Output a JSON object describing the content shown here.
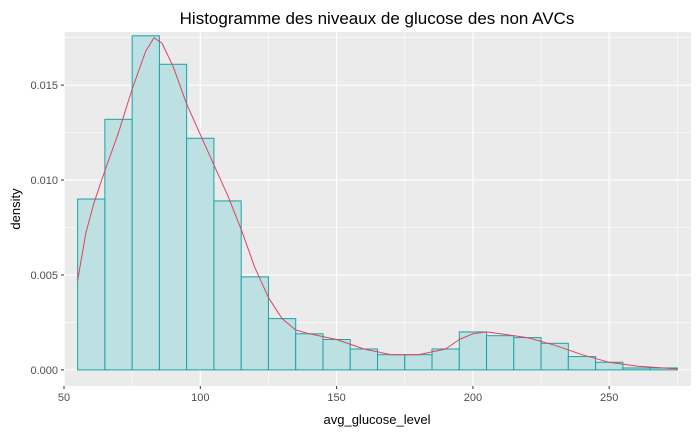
{
  "chart_data": {
    "type": "bar",
    "title": "Histogramme des niveaux de glucose des non AVCs",
    "xlabel": "avg_glucose_level",
    "ylabel": "density",
    "xlim": [
      50,
      280
    ],
    "ylim": [
      -0.00085,
      0.0178
    ],
    "xticks": [
      50,
      100,
      150,
      200,
      250
    ],
    "xtick_labels": [
      "50",
      "100",
      "150",
      "200",
      "250"
    ],
    "yticks": [
      0,
      0.005,
      0.01,
      0.015
    ],
    "ytick_labels": [
      "0.000",
      "0.005",
      "0.010",
      "0.015"
    ],
    "grid": true,
    "legend": "none",
    "bin_width": 10,
    "bins": [
      {
        "x0": 55,
        "x1": 65,
        "density": 0.009
      },
      {
        "x0": 65,
        "x1": 75,
        "density": 0.0132
      },
      {
        "x0": 75,
        "x1": 85,
        "density": 0.0176
      },
      {
        "x0": 85,
        "x1": 95,
        "density": 0.0161
      },
      {
        "x0": 95,
        "x1": 105,
        "density": 0.0122
      },
      {
        "x0": 105,
        "x1": 115,
        "density": 0.0089
      },
      {
        "x0": 115,
        "x1": 125,
        "density": 0.0049
      },
      {
        "x0": 125,
        "x1": 135,
        "density": 0.0027
      },
      {
        "x0": 135,
        "x1": 145,
        "density": 0.0019
      },
      {
        "x0": 145,
        "x1": 155,
        "density": 0.0016
      },
      {
        "x0": 155,
        "x1": 165,
        "density": 0.0011
      },
      {
        "x0": 165,
        "x1": 175,
        "density": 0.0008
      },
      {
        "x0": 175,
        "x1": 185,
        "density": 0.0008
      },
      {
        "x0": 185,
        "x1": 195,
        "density": 0.0011
      },
      {
        "x0": 195,
        "x1": 205,
        "density": 0.002
      },
      {
        "x0": 205,
        "x1": 215,
        "density": 0.0018
      },
      {
        "x0": 215,
        "x1": 225,
        "density": 0.0017
      },
      {
        "x0": 225,
        "x1": 235,
        "density": 0.0014
      },
      {
        "x0": 235,
        "x1": 245,
        "density": 0.0007
      },
      {
        "x0": 245,
        "x1": 255,
        "density": 0.0004
      },
      {
        "x0": 255,
        "x1": 265,
        "density": 0.0001
      },
      {
        "x0": 265,
        "x1": 275,
        "density": 0.0001
      }
    ],
    "density_curve": {
      "x": [
        55,
        58,
        61,
        65,
        70,
        75,
        80,
        83,
        86,
        90,
        95,
        100,
        105,
        110,
        115,
        120,
        125,
        130,
        135,
        140,
        150,
        160,
        170,
        180,
        190,
        195,
        200,
        205,
        210,
        220,
        230,
        240,
        250,
        260,
        270,
        275
      ],
      "y": [
        0.0047,
        0.0072,
        0.0088,
        0.0105,
        0.0125,
        0.0148,
        0.0168,
        0.0175,
        0.0172,
        0.016,
        0.014,
        0.0124,
        0.0108,
        0.0092,
        0.0074,
        0.0054,
        0.0038,
        0.0027,
        0.0021,
        0.0019,
        0.0016,
        0.0011,
        0.0008,
        0.0008,
        0.0011,
        0.0016,
        0.0019,
        0.002,
        0.0019,
        0.0017,
        0.0013,
        0.0008,
        0.0004,
        0.0002,
        0.0001,
        5e-05
      ]
    },
    "colors": {
      "panel_background": "#ebebeb",
      "grid_major": "#ffffff",
      "bar_fill": "#bde1e2",
      "bar_outline": "#1aa2a7",
      "density_line": "#e0425a",
      "tick_text": "#4d4d4d",
      "tick_marks": "#333333"
    }
  }
}
